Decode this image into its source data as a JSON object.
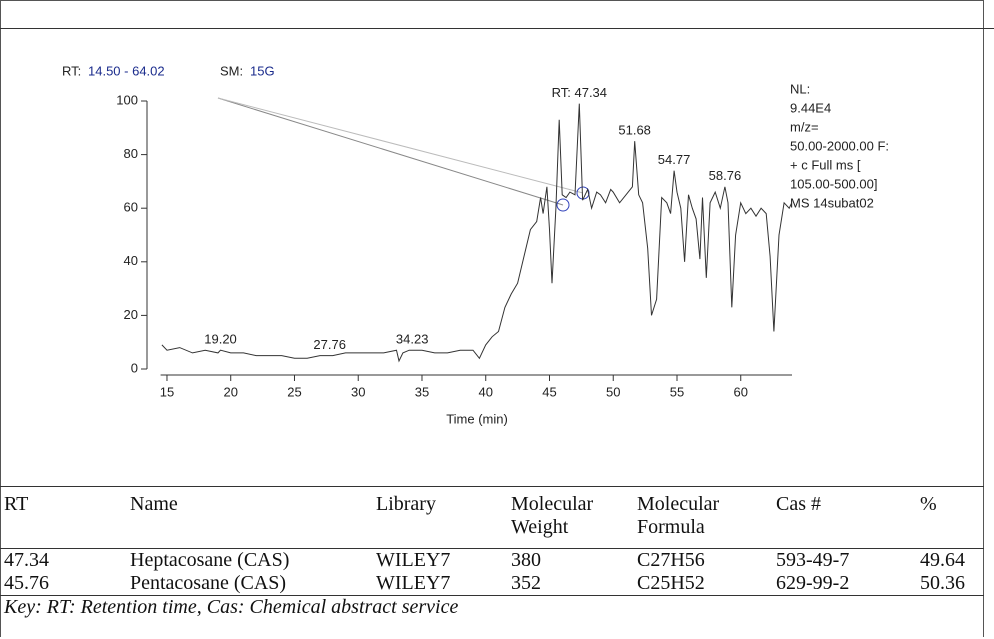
{
  "chart_data": {
    "type": "line",
    "header": [
      "RT:",
      "14.50 - 64.02",
      "SM:",
      "15G"
    ],
    "x_label": "Time (min)",
    "info": [
      "NL:",
      "9.44E4",
      "m/z=",
      "50.00-2000.00 F:",
      "+ c Full ms [",
      "105.00-500.00]",
      "MS 14subat02"
    ],
    "color": "#333333",
    "xlim": [
      14.5,
      64.02
    ],
    "ylim": [
      0,
      100
    ],
    "xticks": [
      15,
      20,
      25,
      30,
      35,
      40,
      45,
      50,
      55,
      60
    ],
    "yticks": [
      0,
      20,
      40,
      60,
      80,
      100
    ],
    "peak_labels": [
      {
        "value": 19.2,
        "label": "19.20"
      },
      {
        "value": 27.76,
        "label": "27.76"
      },
      {
        "value": 34.23,
        "label": "34.23"
      },
      {
        "value": 47.34,
        "label": "RT: 47.34"
      },
      {
        "value": 51.68,
        "label": "51.68"
      },
      {
        "value": 54.77,
        "label": "54.77"
      },
      {
        "value": 58.76,
        "label": "58.76"
      }
    ],
    "x": [
      14.6,
      15,
      16,
      17,
      18,
      19,
      19.2,
      20,
      21,
      22,
      23,
      24,
      25,
      26,
      27,
      27.76,
      28,
      29,
      30,
      31,
      32,
      33,
      33.2,
      33.5,
      34,
      34.23,
      35,
      36,
      37,
      38,
      39,
      39.5,
      40,
      40.5,
      41,
      41.5,
      42,
      42.5,
      43,
      43.5,
      44,
      44.3,
      44.5,
      44.8,
      45,
      45.2,
      45.5,
      45.76,
      46,
      46.3,
      46.6,
      47,
      47.34,
      47.6,
      48,
      48.3,
      48.7,
      49,
      49.4,
      49.8,
      50,
      50.5,
      51,
      51.5,
      51.68,
      52,
      52.3,
      52.7,
      53,
      53.4,
      53.8,
      54.2,
      54.5,
      54.77,
      55,
      55.3,
      55.6,
      55.9,
      56.2,
      56.5,
      56.8,
      57,
      57.3,
      57.6,
      58,
      58.4,
      58.76,
      59,
      59.3,
      59.6,
      60,
      60.4,
      60.8,
      61.2,
      61.6,
      62,
      62.3,
      62.6,
      63,
      63.4,
      63.8,
      64
    ],
    "values": [
      9,
      7,
      8,
      6,
      7,
      6,
      7,
      6,
      6,
      5,
      5,
      5,
      4,
      4,
      5,
      5,
      5,
      6,
      6,
      6,
      6,
      7,
      3,
      6,
      7,
      7,
      7,
      6,
      6,
      7,
      7,
      4,
      9,
      12,
      14,
      23,
      28,
      32,
      42,
      52,
      55,
      64,
      58,
      68,
      52,
      32,
      60,
      93,
      65,
      64,
      66,
      65,
      99,
      63,
      67,
      60,
      66,
      65,
      62,
      67,
      66,
      62,
      65,
      68,
      85,
      65,
      62,
      45,
      20,
      26,
      64,
      62,
      58,
      74,
      66,
      60,
      40,
      65,
      60,
      56,
      41,
      64,
      34,
      62,
      66,
      60,
      68,
      62,
      23,
      50,
      62,
      58,
      60,
      57,
      60,
      58,
      42,
      14,
      50,
      62,
      60,
      62
    ]
  },
  "table": {
    "columns": [
      "RT",
      "Name",
      "Library",
      "Molecular Weight",
      "Molecular Formula",
      "Cas #",
      "%"
    ],
    "rows": [
      [
        "47.34",
        "Heptacosane (CAS)",
        "WILEY7",
        "380",
        "C27H56",
        "593-49-7",
        "49.64"
      ],
      [
        "45.76",
        "Pentacosane (CAS)",
        "WILEY7",
        "352",
        "C25H52",
        "629-99-2",
        "50.36"
      ]
    ],
    "note": "Key: RT: Retention time, Cas: Chemical abstract service"
  }
}
